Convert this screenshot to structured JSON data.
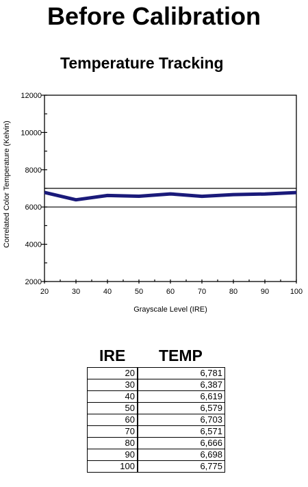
{
  "page": {
    "title": "Before Calibration"
  },
  "chart_data": {
    "type": "line",
    "title": "Temperature Tracking",
    "xlabel": "Grayscale Level (IRE)",
    "ylabel": "Correlated Color Temperature (Kelvin)",
    "x": [
      20,
      30,
      40,
      50,
      60,
      70,
      80,
      90,
      100
    ],
    "xlim": [
      20,
      100
    ],
    "ylim": [
      2000,
      12000
    ],
    "x_ticks": [
      "20",
      "30",
      "40",
      "50",
      "60",
      "70",
      "80",
      "90",
      "100"
    ],
    "y_ticks": [
      "2000",
      "4000",
      "6000",
      "8000",
      "10000",
      "12000"
    ],
    "reference_lines": [
      6000,
      7000
    ],
    "series": [
      {
        "values": [
          6781,
          6387,
          6619,
          6579,
          6703,
          6571,
          6666,
          6698,
          6775
        ],
        "color": "#1a1a7a"
      }
    ]
  },
  "table": {
    "headers": [
      "IRE",
      "TEMP"
    ],
    "rows": [
      [
        "20",
        "6,781"
      ],
      [
        "30",
        "6,387"
      ],
      [
        "40",
        "6,619"
      ],
      [
        "50",
        "6,579"
      ],
      [
        "60",
        "6,703"
      ],
      [
        "70",
        "6,571"
      ],
      [
        "80",
        "6,666"
      ],
      [
        "90",
        "6,698"
      ],
      [
        "100",
        "6,775"
      ]
    ]
  }
}
